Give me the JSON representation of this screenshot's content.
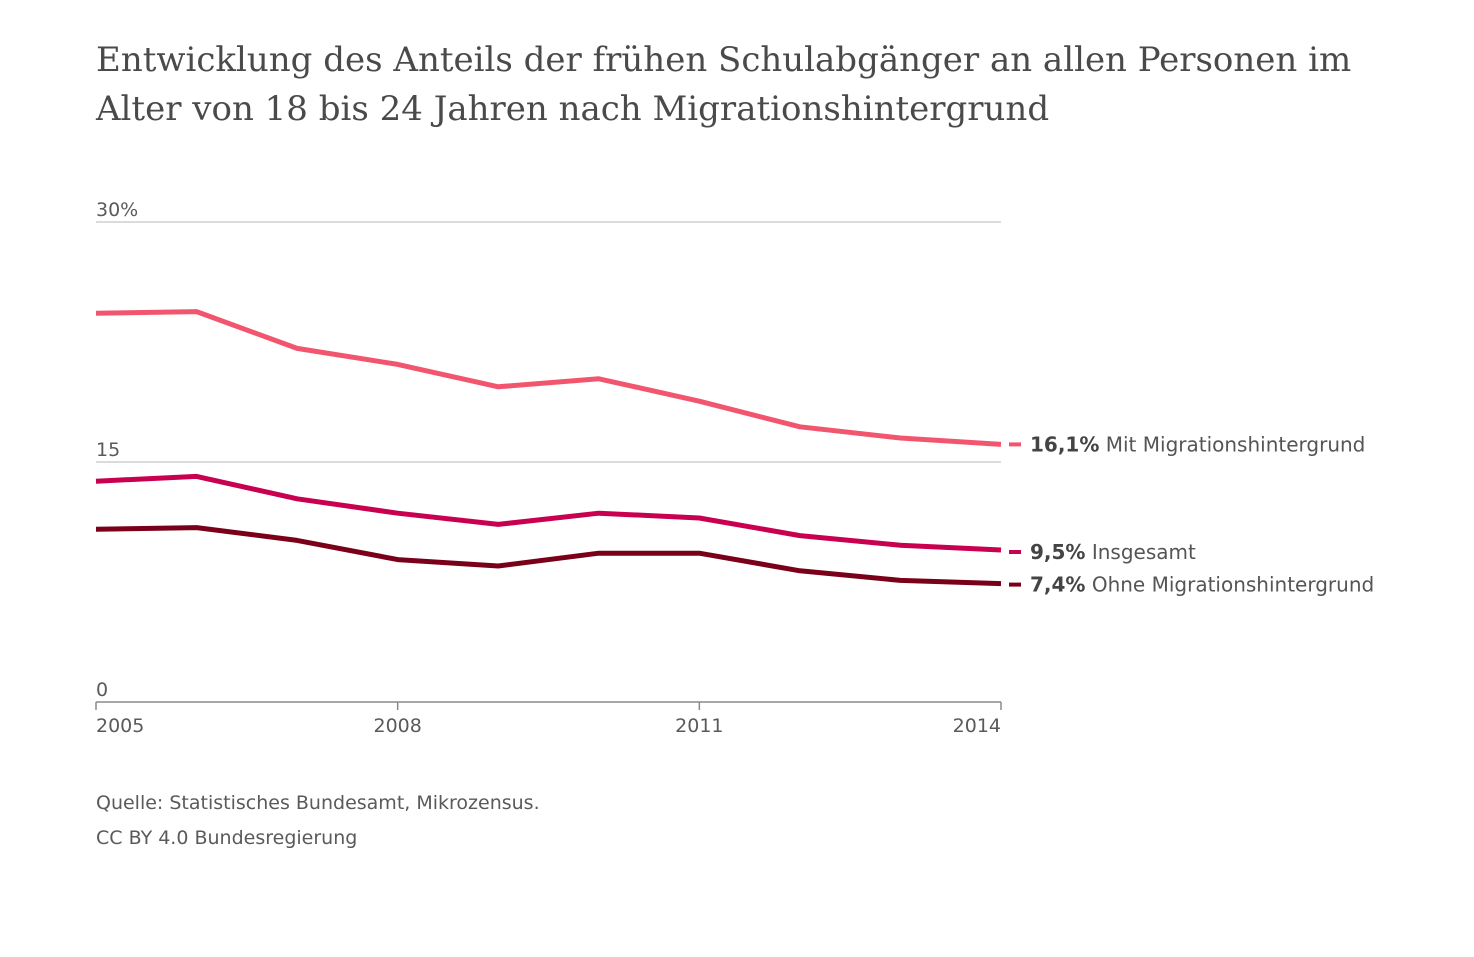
{
  "title": "Entwicklung des Anteils der frühen Schulabgänger an allen Personen im Alter von 18 bis 24 Jahren nach Migrationshintergrund",
  "footer": {
    "source": "Quelle: Statistisches Bundesamt, Mikrozensus.",
    "license": "CC BY 4.0 Bundesregierung"
  },
  "chart_data": {
    "type": "line",
    "title": "Entwicklung des Anteils der frühen Schulabgänger an allen Personen im Alter von 18 bis 24 Jahren nach Migrationshintergrund",
    "xlabel": "",
    "ylabel": "",
    "x": [
      2005,
      2006,
      2007,
      2008,
      2009,
      2010,
      2011,
      2012,
      2013,
      2014
    ],
    "xlim": [
      2005,
      2014
    ],
    "ylim": [
      0,
      30
    ],
    "y_ticks": [
      {
        "value": 0,
        "label": "0"
      },
      {
        "value": 15,
        "label": "15"
      },
      {
        "value": 30,
        "label": "30%"
      }
    ],
    "x_ticks": [
      {
        "value": 2005,
        "label": "2005"
      },
      {
        "value": 2008,
        "label": "2008"
      },
      {
        "value": 2011,
        "label": "2011"
      },
      {
        "value": 2014,
        "label": "2014"
      }
    ],
    "grid": "horizontal",
    "series": [
      {
        "name": "Mit Migrationshintergrund",
        "end_value_label": "16,1%",
        "color": "#f2566f",
        "values": [
          24.3,
          24.4,
          22.1,
          21.1,
          19.7,
          20.2,
          18.8,
          17.2,
          16.5,
          16.1
        ]
      },
      {
        "name": "Insgesamt",
        "end_value_label": "9,5%",
        "color": "#c8004f",
        "values": [
          13.8,
          14.1,
          12.7,
          11.8,
          11.1,
          11.8,
          11.5,
          10.4,
          9.8,
          9.5
        ]
      },
      {
        "name": "Ohne Migrationshintergrund",
        "end_value_label": "7,4%",
        "color": "#7a0019",
        "values": [
          10.8,
          10.9,
          10.1,
          8.9,
          8.5,
          9.3,
          9.3,
          8.2,
          7.6,
          7.4
        ]
      }
    ]
  }
}
